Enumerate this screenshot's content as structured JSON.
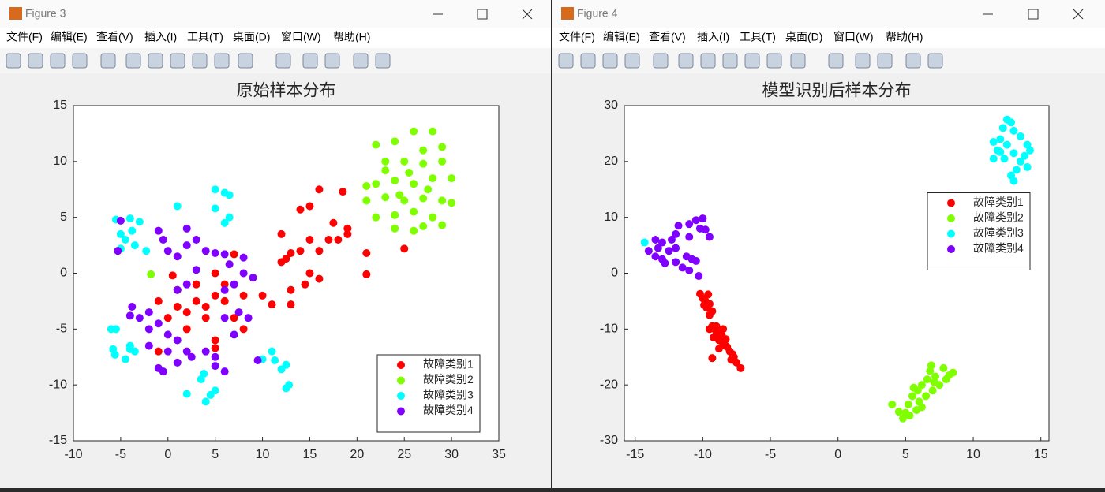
{
  "windows": [
    {
      "title": "Figure 3",
      "menu": [
        "文件(F)",
        "编辑(E)",
        "查看(V)",
        "插入(I)",
        "工具(T)",
        "桌面(D)",
        "窗口(W)",
        "帮助(H)"
      ]
    },
    {
      "title": "Figure 4",
      "menu": [
        "文件(F)",
        "编辑(E)",
        "查看(V)",
        "插入(I)",
        "工具(T)",
        "桌面(D)",
        "窗口(W)",
        "帮助(H)"
      ]
    }
  ],
  "chart_data": [
    {
      "type": "scatter",
      "title": "原始样本分布",
      "xlim": [
        -10,
        35
      ],
      "ylim": [
        -15,
        15
      ],
      "xticks": [
        -10,
        -5,
        0,
        5,
        10,
        15,
        20,
        25,
        30,
        35
      ],
      "yticks": [
        -15,
        -10,
        -5,
        0,
        5,
        10,
        15
      ],
      "legend": "southeast",
      "series": [
        {
          "name": "故障类别1",
          "color": "#ff0000",
          "x": [
            -1,
            -1,
            0,
            1,
            2,
            2,
            3,
            3,
            4,
            4,
            5,
            5,
            5,
            5,
            6,
            6,
            7,
            7,
            8,
            8,
            10,
            11,
            12,
            12,
            12.5,
            13,
            13,
            13,
            14,
            14,
            14.5,
            15,
            15,
            15,
            16,
            16,
            16,
            17,
            17.5,
            18,
            18.5,
            19,
            19,
            21,
            21,
            25,
            0.5,
            1
          ],
          "y": [
            -2.5,
            -7,
            -4,
            -3,
            -3.5,
            -5,
            -1,
            -2.5,
            -4,
            -3,
            -6,
            -6.7,
            0,
            -2,
            -2.5,
            -1,
            1.7,
            -4,
            -2,
            -5,
            -2,
            -2.8,
            1,
            3.5,
            1.3,
            -1.5,
            1.8,
            -2.8,
            2,
            5.7,
            -1,
            6,
            3,
            0,
            7.5,
            2,
            -0.5,
            3,
            4.5,
            3,
            7.3,
            4,
            3.5,
            1.8,
            -0.1,
            2.2,
            -0.2,
            -1.5
          ]
        },
        {
          "name": "故障类别2",
          "color": "#80ff00",
          "x": [
            22,
            24,
            26,
            28,
            27,
            29,
            23,
            25,
            27,
            29,
            30,
            22,
            24,
            26,
            28,
            30,
            21,
            23,
            25,
            27,
            29,
            22,
            24,
            26,
            28,
            24,
            26,
            27,
            29,
            23,
            25.5,
            27.5,
            21,
            24.5,
            -1.8
          ],
          "y": [
            11.5,
            11.8,
            12.7,
            12.7,
            11,
            11.3,
            10,
            10,
            9.8,
            10,
            8.5,
            8,
            8.3,
            8,
            8.5,
            6.3,
            6.5,
            6.8,
            6.5,
            6.7,
            6.5,
            5,
            5.2,
            5.5,
            5,
            4,
            3.8,
            4.2,
            4.3,
            9.2,
            9,
            7.5,
            7.8,
            7,
            -0.1
          ]
        },
        {
          "name": "故障类别3",
          "color": "#00ffff",
          "x": [
            -5.5,
            -4,
            -3,
            -5,
            -4.5,
            -3.5,
            -2.3,
            -5,
            -3.8,
            1,
            5,
            6,
            6.5,
            5,
            6,
            6.5,
            -5.5,
            -6,
            -5.8,
            -5.6,
            -4,
            -3.5,
            -4.5,
            -4,
            2,
            3.5,
            4,
            5,
            4.5,
            3.8,
            10,
            11,
            11.3,
            12,
            12.5,
            12.8,
            12.5
          ],
          "y": [
            4.8,
            4.9,
            4.6,
            3.5,
            3,
            2.5,
            2,
            2.2,
            3.8,
            6,
            7.5,
            7.2,
            7,
            5.8,
            4.5,
            5,
            -5,
            -5,
            -6.8,
            -7.3,
            -6.8,
            -7,
            -7.7,
            -6.5,
            -10.8,
            -9.5,
            -11.5,
            -10.5,
            -10.9,
            -9,
            -7.7,
            -7,
            -7.8,
            -8.6,
            -8.2,
            -10,
            -10.3
          ]
        },
        {
          "name": "故障类别4",
          "color": "#8000ff",
          "x": [
            -5,
            -5.3,
            -1,
            -0.5,
            0,
            1,
            2,
            2,
            3,
            4,
            5,
            6,
            3,
            2,
            1,
            -3.8,
            -3,
            -4,
            -2,
            -2,
            -1,
            0,
            0,
            1,
            2,
            -1,
            -0.5,
            1,
            2.5,
            4,
            5,
            6,
            5,
            6,
            7,
            7.5,
            6,
            7,
            8,
            9,
            8.5,
            8,
            9.5,
            6.5,
            -2
          ],
          "y": [
            4.7,
            2,
            3.8,
            3,
            2,
            1.5,
            4,
            2.5,
            3,
            2,
            1.8,
            1.7,
            0.3,
            -1,
            -1.5,
            -3,
            -4,
            -3.8,
            -3.5,
            -5,
            -4.5,
            -5.5,
            -7,
            -6,
            -7,
            -8.5,
            -8.8,
            -8,
            -7.5,
            -7,
            -7.5,
            -8.8,
            -8.3,
            -4,
            -5.5,
            -3.5,
            -1.5,
            -1,
            0,
            -0.4,
            -4,
            1.4,
            -7.8,
            0.8,
            -6.5
          ]
        }
      ]
    },
    {
      "type": "scatter",
      "title": "模型识别后样本分布",
      "xlim": [
        -15.8,
        15.6
      ],
      "ylim": [
        -30,
        30
      ],
      "xticks": [
        -15,
        -10,
        -5,
        0,
        5,
        10,
        15
      ],
      "yticks": [
        -30,
        -20,
        -10,
        0,
        10,
        20,
        30
      ],
      "legend": "east",
      "series": [
        {
          "name": "故障类别1",
          "color": "#ff0000",
          "x": [
            -10.2,
            -10,
            -9.8,
            -9.5,
            -9.7,
            -9.3,
            -9.5,
            -9.3,
            -9.5,
            -9,
            -9.2,
            -8.8,
            -8.6,
            -8.5,
            -8.8,
            -8.3,
            -8,
            -8.2,
            -7.8,
            -7.9,
            -7.5,
            -7.2,
            -9.3,
            -8.5,
            -9,
            -8.3,
            -7.7,
            -8.9,
            -9.6,
            -9.9
          ],
          "y": [
            -3.7,
            -4.5,
            -5,
            -5.5,
            -6.2,
            -6.8,
            -7.5,
            -9.5,
            -10,
            -10.5,
            -11.5,
            -12,
            -11,
            -12.8,
            -13.5,
            -13,
            -14,
            -13.2,
            -14.5,
            -15.5,
            -16,
            -17,
            -15.2,
            -10,
            -9.5,
            -11.8,
            -15,
            -11,
            -3.8,
            -5.7
          ]
        },
        {
          "name": "故障类别2",
          "color": "#80ff00",
          "x": [
            4,
            4.5,
            4.8,
            5,
            5.2,
            5.5,
            5.8,
            5.9,
            6,
            6.2,
            6.5,
            6.6,
            6.8,
            6.9,
            7,
            7.2,
            7.5,
            7.8,
            8,
            8.5,
            8.2,
            6.2,
            5.3,
            5.6,
            7.1
          ],
          "y": [
            -23.5,
            -24.8,
            -26,
            -25,
            -23.5,
            -22,
            -24.5,
            -21,
            -23,
            -20,
            -22,
            -19,
            -17.5,
            -16.5,
            -21,
            -18.5,
            -20,
            -17,
            -19,
            -17.8,
            -18.3,
            -24,
            -25.5,
            -20.5,
            -19.5
          ]
        },
        {
          "name": "故障类别3",
          "color": "#00ffff",
          "x": [
            12.5,
            12.8,
            12.2,
            13,
            12,
            13.5,
            11.5,
            12.5,
            14,
            14.2,
            13,
            11.8,
            12.3,
            13.5,
            14,
            13.2,
            12.8,
            13,
            11.5,
            12,
            13.8,
            -14.3
          ],
          "y": [
            27.5,
            27,
            26,
            25.5,
            24,
            24.5,
            23.5,
            23,
            23,
            22,
            21.5,
            22,
            20.5,
            20,
            19,
            18.5,
            17.5,
            16.5,
            20.5,
            21.7,
            21,
            5.5
          ]
        },
        {
          "name": "故障类别4",
          "color": "#8000ff",
          "x": [
            -13.5,
            -13,
            -13.3,
            -14,
            -13.5,
            -12.5,
            -12,
            -12.3,
            -12,
            -11.8,
            -11,
            -10.5,
            -10,
            -10.2,
            -9.8,
            -9.5,
            -11,
            -12,
            -11.5,
            -11,
            -10.8,
            -10.5,
            -11.2,
            -10.3,
            -12.8,
            -13
          ],
          "y": [
            6,
            5.5,
            4.5,
            4,
            3,
            4,
            4.5,
            6,
            7,
            8.5,
            8.8,
            9.5,
            9.8,
            8,
            7.8,
            6.5,
            6.5,
            2,
            1,
            0.5,
            2.5,
            2.2,
            3,
            -0.5,
            1.8,
            2.5
          ]
        }
      ]
    }
  ]
}
